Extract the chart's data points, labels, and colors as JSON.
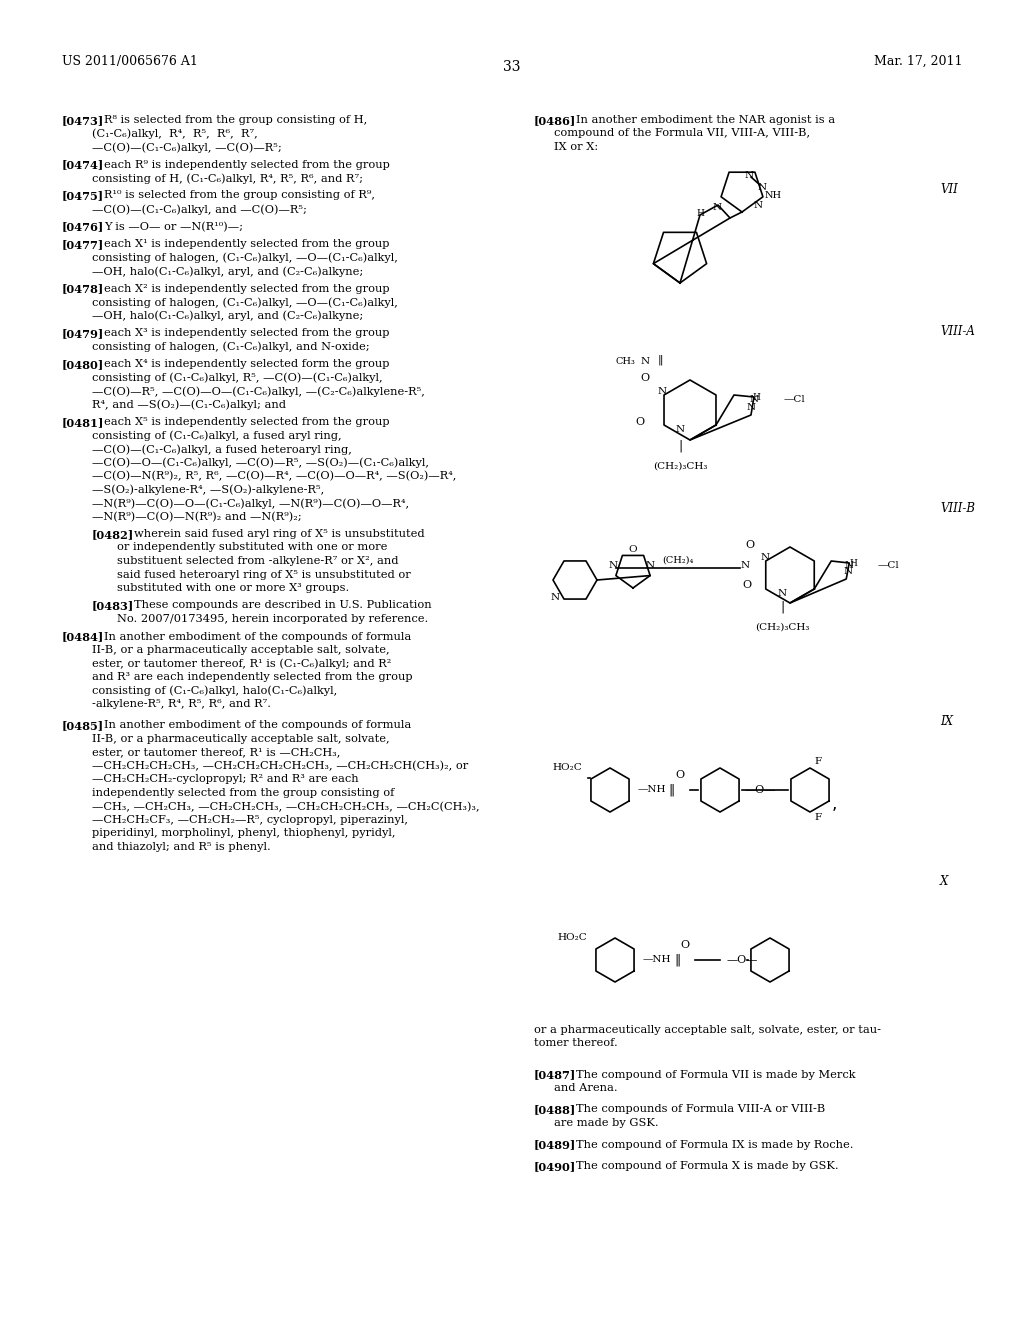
{
  "page_header_left": "US 2011/0065676 A1",
  "page_header_right": "Mar. 17, 2011",
  "page_number": "33",
  "background_color": "#ffffff",
  "text_color": "#000000",
  "left_column_text": [
    {
      "tag": "[0473]",
      "text": "R⁸ is selected from the group consisting of H, (C₁-C₆)alkyl,  R⁴,  R⁵,  R⁶,  R⁷,  —C(O)—(C₁-C₆)alkyl, —C(O)—R⁵;"
    },
    {
      "tag": "[0474]",
      "text": "each R⁹ is independently selected from the group consisting of H, (C₁-C₆)alkyl, R⁴, R⁵, R⁶, and R⁷;"
    },
    {
      "tag": "[0475]",
      "text": "R¹⁰ is selected from the group consisting of R⁹, —C(O)—(C₁-C₆)alkyl, and —C(O)—R⁵;"
    },
    {
      "tag": "[0476]",
      "text": "Y is —O— or —N(R¹⁰)—;"
    },
    {
      "tag": "[0477]",
      "text": "each X¹ is independently selected from the group consisting of halogen, (C₁-C₆)alkyl, —O—(C₁-C₆)alkyl, —OH, halo(C₁-C₆)alkyl, aryl, and (C₂-C₆)alkyne;"
    },
    {
      "tag": "[0478]",
      "text": "each X² is independently selected from the group consisting of halogen, (C₁-C₆)alkyl, —O—(C₁-C₆)alkyl, —OH, halo(C₁-C₆)alkyl, aryl, and (C₂-C₆)alkyne;"
    },
    {
      "tag": "[0479]",
      "text": "each X³ is independently selected from the group consisting of halogen, (C₁-C₆)alkyl, and N-oxide;"
    },
    {
      "tag": "[0480]",
      "text": "each X⁴ is independently selected form the group consisting of (C₁-C₆)alkyl, R⁵, —C(O)—(C₁-C₆)alkyl, —C(O)—R⁵, —C(O)—O—(C₁-C₆)alkyl, —(C₂-C₆)alkylene-R⁵, R⁴, and —S(O₂)—(C₁-C₆)alkyl; and"
    },
    {
      "tag": "[0481]",
      "text": "each X⁵ is independently selected from the group consisting of (C₁-C₆)alkyl, a fused aryl ring, —C(O)—(C₁-C₆)alkyl, a fused heteroaryl ring, —C(O)—O—(C₁-C₆)alkyl, —C(O)—R⁵, —S(O₂)—(C₁-C₆)alkyl, —C(O)—N(R⁹)₂, R⁵, R⁶, —C(O)—R⁴, —C(O)—O—R⁴, —S(O₂)—R⁴, —S(O₂)-alkylene-R⁴, —S(O₂)-alkylene-R⁵, —N(R⁹)—C(O)—O—(C₁-C₆)alkyl, —N(R⁹)—C(O)—O—R⁴, —N(R⁹)—C(O)—N(R⁹)₂ and —N(R⁹)₂;"
    },
    {
      "tag": "[0482]",
      "text": "wherein said fused aryl ring of X⁵ is unsubstituted or independently substituted with one or more substituent selected from -alkylene-R⁷ or X², and said fused heteroaryl ring of X⁵ is unsubstituted or substituted with one or more X³ groups."
    },
    {
      "tag": "[0483]",
      "text": "These compounds are described in U.S. Publication No. 2007/0173495, herein incorporated by reference."
    },
    {
      "tag": "[0484]",
      "text": "In another embodiment of the compounds of formula II-B, or a pharmaceutically acceptable salt, solvate, ester, or tautomer thereof, R¹ is (C₁-C₆)alkyl; and R² and R³ are each independently selected from the group consisting of (C₁-C₆)alkyl, halo(C₁-C₆)alkyl, -alkylene-R⁵, R⁴, R⁵, R⁶, and R⁷."
    },
    {
      "tag": "[0485]",
      "text": "In another embodiment of the compounds of formula II-B, or a pharmaceutically acceptable salt, solvate, ester, or tautomer thereof, R¹ is —CH₂CH₃, —CH₂CH₂CH₂CH₃, —CH₂CH₂CH₂CH₂CH₃, —CH₂CH₂CH(CH₃)₂, or —CH₂CH₂CH₂-cyclopropyl; R² and R³ are each independently selected from the group consisting of —CH₃, —CH₂CH₃, —CH₂CH₂CH₃, —CH₂CH₂CH₂CH₃, —CH₂C(CH₃)₃, —CH₂CH₂CF₃, —CH₂CH₂—R⁵, cyclopropyl, piperazinyl, piperidinyl, morpholinyl, phenyl, thiophenyl, pyridyl, and thiazolyl; and R⁵ is phenyl."
    }
  ],
  "right_column_text": [
    {
      "tag": "[0486]",
      "text": "In another embodiment the NAR agonist is a compound of the Formula VII, VIII-A, VIII-B, IX or X:"
    },
    {
      "tag": "formula_labels",
      "labels": [
        "VII",
        "VIII-A",
        "VIII-B",
        "IX",
        "X"
      ]
    },
    {
      "tag": "[0487]",
      "text": "or a pharmaceutically acceptable salt, solvate, ester, or tautomer thereof."
    },
    {
      "tag": "[0487b]",
      "text": "The compound of Formula VII is made by Merck and Arena."
    },
    {
      "tag": "[0488]",
      "text": "The compounds of Formula VIII-A or VIII-B are made by GSK."
    },
    {
      "tag": "[0489]",
      "text": "The compound of Formula IX is made by Roche."
    },
    {
      "tag": "[0490]",
      "text": "The compound of Formula X is made by GSK."
    }
  ]
}
